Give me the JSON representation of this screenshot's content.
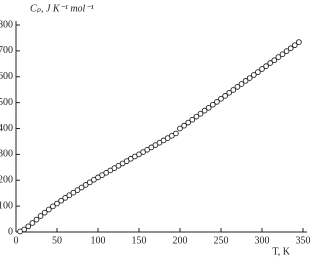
{
  "chart_data": {
    "type": "scatter",
    "y_label": "Cₚ, J K⁻¹ mol⁻¹",
    "x_label": "T, K",
    "x": [
      5,
      10,
      15,
      20,
      25,
      30,
      35,
      40,
      45,
      50,
      55,
      60,
      65,
      70,
      75,
      80,
      85,
      90,
      95,
      100,
      105,
      110,
      115,
      120,
      125,
      130,
      135,
      140,
      145,
      150,
      155,
      160,
      165,
      170,
      175,
      180,
      185,
      190,
      195,
      200,
      205,
      210,
      215,
      220,
      225,
      230,
      235,
      240,
      245,
      250,
      255,
      260,
      265,
      270,
      275,
      280,
      285,
      290,
      295,
      300,
      305,
      310,
      315,
      320,
      325,
      330,
      335,
      340,
      345
    ],
    "values": [
      2,
      10,
      22,
      35,
      48,
      62,
      75,
      87,
      99,
      110,
      121,
      132,
      142,
      152,
      162,
      172,
      182,
      192,
      202,
      211,
      220,
      229,
      238,
      247,
      256,
      265,
      274,
      283,
      292,
      300,
      309,
      318,
      327,
      336,
      345,
      354,
      363,
      372,
      381,
      400,
      411,
      423,
      434,
      446,
      457,
      469,
      480,
      492,
      503,
      515,
      526,
      538,
      549,
      561,
      572,
      584,
      595,
      607,
      618,
      630,
      641,
      653,
      664,
      676,
      687,
      699,
      710,
      722,
      734
    ],
    "color": "#222222",
    "xlim": [
      0,
      350
    ],
    "ylim": [
      0,
      800
    ],
    "xticks": [
      0,
      50,
      100,
      150,
      200,
      250,
      300,
      350
    ],
    "yticks": [
      0,
      100,
      200,
      300,
      400,
      500,
      600,
      700,
      800
    ]
  }
}
